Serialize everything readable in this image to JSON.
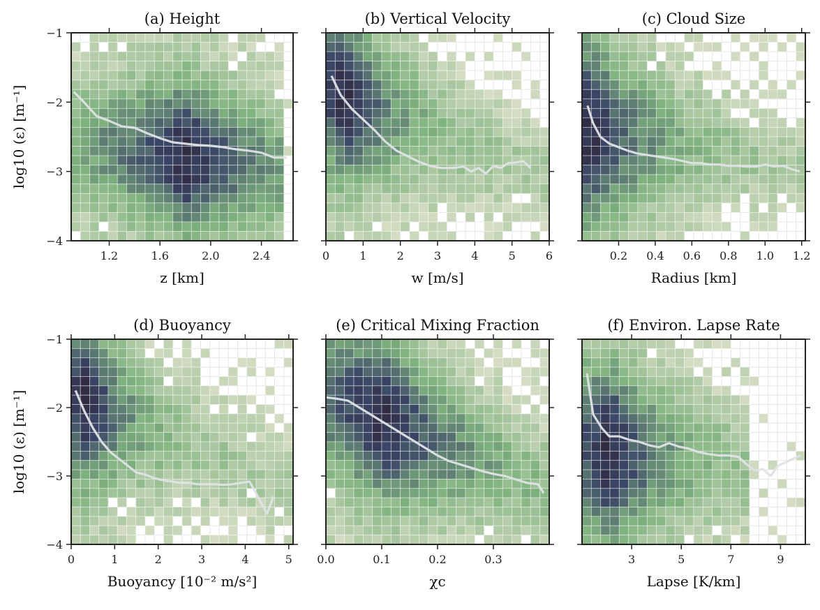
{
  "colors": {
    "low": "#ece8d6",
    "mid": "#7fb27e",
    "high": "#3a4666",
    "max": "#312c44",
    "median": "#dfe3e6"
  },
  "chart_data": [
    {
      "type": "heatmap",
      "title": "(a) Height",
      "xlabel": "z [km]",
      "ylabel": "log10 (ε) [m⁻¹]",
      "xlim": [
        0.9,
        2.65
      ],
      "ylim": [
        -4,
        -1
      ],
      "xticks": [
        1.2,
        1.6,
        2.0,
        2.4
      ],
      "xtick_labels": [
        "1.2",
        "1.6",
        "2.0",
        "2.4"
      ],
      "yticks": [
        -1,
        -2,
        -3,
        -4
      ],
      "ytick_labels": [
        "−1",
        "−2",
        "−3",
        "−4"
      ],
      "density": {
        "x_range": [
          0.9,
          2.55
        ],
        "peak_x": 1.8,
        "spread_x": 1.1,
        "sharp": 1.5,
        "center": [
          -2.6,
          -2.95
        ],
        "width": [
          1.0,
          1.0
        ]
      },
      "median": {
        "x": [
          0.92,
          1.0,
          1.1,
          1.2,
          1.3,
          1.4,
          1.5,
          1.6,
          1.7,
          1.8,
          1.9,
          2.0,
          2.1,
          2.2,
          2.3,
          2.4,
          2.5,
          2.6
        ],
        "y": [
          -1.85,
          -2.0,
          -2.2,
          -2.27,
          -2.35,
          -2.37,
          -2.45,
          -2.52,
          -2.58,
          -2.6,
          -2.62,
          -2.63,
          -2.65,
          -2.68,
          -2.7,
          -2.73,
          -2.8,
          -2.8
        ]
      }
    },
    {
      "type": "heatmap",
      "title": "(b) Vertical Velocity",
      "xlabel": "w [m/s]",
      "ylabel": "",
      "xlim": [
        0,
        6
      ],
      "ylim": [
        -4,
        -1
      ],
      "xticks": [
        0,
        1,
        2,
        3,
        4,
        5,
        6
      ],
      "xtick_labels": [
        "0",
        "1",
        "2",
        "3",
        "4",
        "5",
        "6"
      ],
      "yticks": [
        -1,
        -2,
        -3,
        -4
      ],
      "ytick_labels": [
        "",
        "",
        "",
        ""
      ],
      "density": {
        "x_range": [
          0,
          6
        ],
        "peak_x": 0.5,
        "spread_x": 2.0,
        "sharp": 1.3,
        "center": [
          -1.8,
          -3.1
        ],
        "width": [
          1.2,
          0.7
        ]
      },
      "median": {
        "x": [
          0.15,
          0.4,
          0.7,
          1.0,
          1.3,
          1.6,
          1.9,
          2.2,
          2.5,
          2.8,
          3.1,
          3.4,
          3.7,
          3.9,
          4.1,
          4.3,
          4.5,
          4.7,
          4.9,
          5.1,
          5.3,
          5.5
        ],
        "y": [
          -1.62,
          -1.9,
          -2.1,
          -2.25,
          -2.4,
          -2.57,
          -2.7,
          -2.78,
          -2.86,
          -2.92,
          -2.95,
          -2.95,
          -2.93,
          -3.0,
          -2.95,
          -3.03,
          -2.92,
          -2.95,
          -2.88,
          -2.87,
          -2.85,
          -2.95
        ]
      }
    },
    {
      "type": "heatmap",
      "title": "(c) Cloud Size",
      "xlabel": "Radius [km]",
      "ylabel": "",
      "xlim": [
        0.0,
        1.22
      ],
      "ylim": [
        -4,
        -1
      ],
      "xticks": [
        0.2,
        0.4,
        0.6,
        0.8,
        1.0,
        1.2
      ],
      "xtick_labels": [
        "0.2",
        "0.4",
        "0.6",
        "0.8",
        "1.0",
        "1.2"
      ],
      "yticks": [
        -1,
        -2,
        -3,
        -4
      ],
      "ytick_labels": [
        "",
        "",
        "",
        ""
      ],
      "density": {
        "x_range": [
          0.0,
          1.2
        ],
        "peak_x": 0.04,
        "spread_x": 0.45,
        "sharp": 1.2,
        "center": [
          -2.4,
          -2.95
        ],
        "width": [
          1.3,
          0.55
        ]
      },
      "median": {
        "x": [
          0.03,
          0.06,
          0.1,
          0.15,
          0.2,
          0.25,
          0.3,
          0.35,
          0.4,
          0.45,
          0.5,
          0.55,
          0.6,
          0.65,
          0.7,
          0.75,
          0.8,
          0.85,
          0.9,
          0.95,
          1.0,
          1.05,
          1.1,
          1.15,
          1.19
        ],
        "y": [
          -2.05,
          -2.3,
          -2.5,
          -2.6,
          -2.65,
          -2.7,
          -2.74,
          -2.76,
          -2.78,
          -2.8,
          -2.82,
          -2.85,
          -2.88,
          -2.88,
          -2.9,
          -2.9,
          -2.92,
          -2.92,
          -2.93,
          -2.93,
          -2.9,
          -2.93,
          -2.92,
          -2.97,
          -3.0
        ]
      }
    },
    {
      "type": "heatmap",
      "title": "(d) Buoyancy",
      "xlabel": "Buoyancy [10⁻² m/s²]",
      "ylabel": "log10 (ε) [m⁻¹]",
      "xlim": [
        0,
        5.1
      ],
      "ylim": [
        -4,
        -1
      ],
      "xticks": [
        0,
        1,
        2,
        3,
        4,
        5
      ],
      "xtick_labels": [
        "0",
        "1",
        "2",
        "3",
        "4",
        "5"
      ],
      "yticks": [
        -1,
        -2,
        -3,
        -4
      ],
      "ytick_labels": [
        "−1",
        "−2",
        "−3",
        "−4"
      ],
      "density": {
        "x_range": [
          0,
          5.1
        ],
        "peak_x": 0.3,
        "spread_x": 1.5,
        "sharp": 1.3,
        "center": [
          -1.8,
          -3.2
        ],
        "width": [
          1.2,
          0.7
        ]
      },
      "median": {
        "x": [
          0.1,
          0.3,
          0.5,
          0.7,
          0.9,
          1.1,
          1.3,
          1.5,
          1.7,
          1.9,
          2.1,
          2.3,
          2.5,
          2.7,
          2.9,
          3.1,
          3.3,
          3.5,
          3.7,
          3.9,
          4.1,
          4.5,
          4.65
        ],
        "y": [
          -1.75,
          -2.05,
          -2.3,
          -2.5,
          -2.65,
          -2.75,
          -2.85,
          -2.95,
          -2.98,
          -3.03,
          -3.06,
          -3.08,
          -3.1,
          -3.1,
          -3.12,
          -3.12,
          -3.12,
          -3.13,
          -3.12,
          -3.1,
          -3.08,
          -3.55,
          -3.3
        ]
      }
    },
    {
      "type": "heatmap",
      "title": "(e) Critical Mixing Fraction",
      "xlabel": "χc",
      "ylabel": "",
      "xlim": [
        0,
        0.4
      ],
      "ylim": [
        -4,
        -1
      ],
      "xticks": [
        0.0,
        0.1,
        0.2,
        0.3
      ],
      "xtick_labels": [
        "0.0",
        "0.1",
        "0.2",
        "0.3"
      ],
      "yticks": [
        -1,
        -2,
        -3,
        -4
      ],
      "ytick_labels": [
        "",
        "",
        "",
        ""
      ],
      "density": {
        "x_range": [
          0,
          0.4
        ],
        "peak_x": 0.1,
        "spread_x": 0.22,
        "sharp": 1.3,
        "center": [
          -1.8,
          -3.2
        ],
        "width": [
          1.2,
          0.8
        ]
      },
      "median": {
        "x": [
          0.0,
          0.02,
          0.04,
          0.06,
          0.08,
          0.1,
          0.12,
          0.14,
          0.16,
          0.18,
          0.2,
          0.22,
          0.24,
          0.26,
          0.28,
          0.3,
          0.32,
          0.34,
          0.36,
          0.38,
          0.39
        ],
        "y": [
          -1.85,
          -1.87,
          -1.9,
          -2.0,
          -2.1,
          -2.2,
          -2.3,
          -2.4,
          -2.5,
          -2.6,
          -2.7,
          -2.78,
          -2.83,
          -2.88,
          -2.93,
          -2.97,
          -3.0,
          -3.05,
          -3.1,
          -3.12,
          -3.25
        ]
      }
    },
    {
      "type": "heatmap",
      "title": "(f) Environ. Lapse Rate",
      "xlabel": "Lapse [K/km]",
      "ylabel": "",
      "xlim": [
        1.0,
        10.0
      ],
      "ylim": [
        -4,
        -1
      ],
      "xticks": [
        3,
        5,
        7,
        9
      ],
      "xtick_labels": [
        "3",
        "5",
        "7",
        "9"
      ],
      "yticks": [
        -1,
        -2,
        -3,
        -4
      ],
      "ytick_labels": [
        "",
        "",
        "",
        ""
      ],
      "density": {
        "x_range": [
          1.0,
          7.9
        ],
        "peak_x": 2.1,
        "spread_x": 3.0,
        "sharp": 1.2,
        "center": [
          -2.6,
          -2.9
        ],
        "width": [
          1.3,
          1.0
        ]
      },
      "median": {
        "x": [
          1.2,
          1.45,
          1.8,
          2.1,
          2.5,
          2.9,
          3.3,
          3.7,
          4.1,
          4.5,
          4.9,
          5.3,
          5.7,
          6.1,
          6.5,
          6.9,
          7.3,
          7.7,
          8.0,
          8.3,
          8.6,
          8.9,
          9.2,
          9.5,
          9.8
        ],
        "y": [
          -1.5,
          -2.1,
          -2.3,
          -2.42,
          -2.42,
          -2.47,
          -2.5,
          -2.55,
          -2.58,
          -2.52,
          -2.57,
          -2.6,
          -2.65,
          -2.68,
          -2.7,
          -2.7,
          -2.72,
          -2.85,
          -2.92,
          -2.9,
          -3.0,
          -2.85,
          -2.8,
          -2.75,
          -2.7
        ]
      }
    }
  ]
}
